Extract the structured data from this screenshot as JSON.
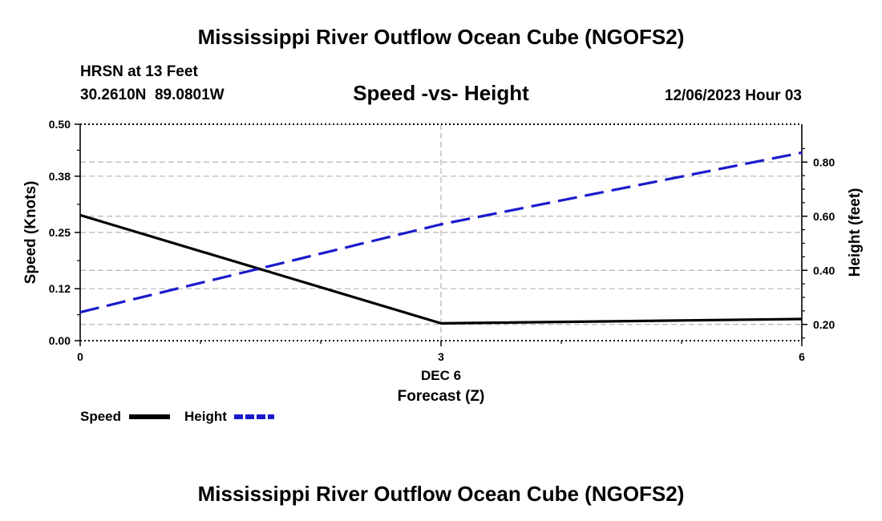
{
  "page": {
    "main_title": "Mississippi River Outflow Ocean Cube (NGOFS2)",
    "bottom_title": "Mississippi River Outflow Ocean Cube (NGOFS2)"
  },
  "station": {
    "name_line": "HRSN at 13 Feet",
    "coords_line": "30.2610N  89.0801W",
    "datetime": "12/06/2023 Hour 03"
  },
  "chart_data": {
    "type": "line",
    "title": "Speed -vs- Height",
    "xlabel": "Forecast (Z)",
    "x_date_label": "DEC 6",
    "ylabel": "Speed (Knots)",
    "y2label": "Height (feet)",
    "x": [
      0,
      3,
      6
    ],
    "x_ticks": [
      "0",
      "3",
      "6"
    ],
    "xlim": [
      0,
      6
    ],
    "ylim": [
      0,
      0.5
    ],
    "y_ticks": [
      0.0,
      0.12,
      0.25,
      0.38,
      0.5
    ],
    "y_tick_labels": [
      "0.00",
      "0.12",
      "0.25",
      "0.38",
      "0.50"
    ],
    "y2lim": [
      0.14,
      0.94
    ],
    "y2_ticks": [
      0.2,
      0.4,
      0.6,
      0.8
    ],
    "y2_tick_labels": [
      "0.20",
      "0.40",
      "0.60",
      "0.80"
    ],
    "grid": true,
    "series": [
      {
        "name": "Speed",
        "axis": "left",
        "color": "#000000",
        "dash": "solid",
        "values": [
          0.29,
          0.04,
          0.05
        ]
      },
      {
        "name": "Height",
        "axis": "right",
        "color": "#1a1acc",
        "dash": "dashed",
        "values": [
          0.245,
          0.57,
          0.835
        ]
      }
    ],
    "legend": [
      "Speed",
      "Height"
    ]
  }
}
